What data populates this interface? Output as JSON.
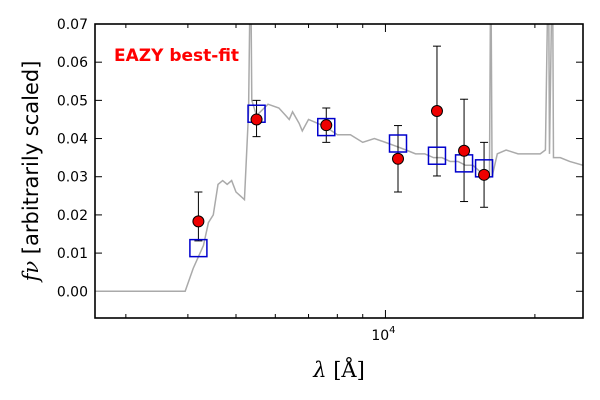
{
  "chart_data": {
    "type": "scatter",
    "annotation": "EAZY best-fit",
    "annotation_color": "#ff0000",
    "xlabel_symbol": "λ",
    "xlabel_unit": "[Å]",
    "ylabel_symbol": "fν",
    "ylabel_text": "[arbitrarily scaled]",
    "x_scale": "log",
    "x_range": [
      2600,
      25000
    ],
    "ylim": [
      -0.007,
      0.07
    ],
    "y_ticks": [
      0.0,
      0.01,
      0.02,
      0.03,
      0.04,
      0.05,
      0.06,
      0.07
    ],
    "y_tick_labels": [
      "0.00",
      "0.01",
      "0.02",
      "0.03",
      "0.04",
      "0.05",
      "0.06",
      "0.07"
    ],
    "x_major_tick": {
      "value": 10000,
      "label_base": "10",
      "label_exp": "4"
    },
    "x_minor_ticks": [
      3000,
      4000,
      5000,
      6000,
      7000,
      8000,
      9000,
      20000
    ],
    "colors": {
      "model_line": "#aaaaaa",
      "observed_fill": "#ee0000",
      "observed_edge": "#000000",
      "model_phot_edge": "#0000cc",
      "errorbar": "#000000"
    },
    "observed_photometry": [
      {
        "x": 4200,
        "y": 0.0183,
        "yerr_low": 0.0051,
        "yerr_high": 0.0077
      },
      {
        "x": 5500,
        "y": 0.045,
        "yerr_low": 0.0045,
        "yerr_high": 0.005
      },
      {
        "x": 7600,
        "y": 0.0435,
        "yerr_low": 0.0045,
        "yerr_high": 0.0045
      },
      {
        "x": 10600,
        "y": 0.0347,
        "yerr_low": 0.0087,
        "yerr_high": 0.0087
      },
      {
        "x": 12700,
        "y": 0.0472,
        "yerr_low": 0.017,
        "yerr_high": 0.017
      },
      {
        "x": 14400,
        "y": 0.0368,
        "yerr_low": 0.0133,
        "yerr_high": 0.0135
      },
      {
        "x": 15800,
        "y": 0.0305,
        "yerr_low": 0.0085,
        "yerr_high": 0.0085
      }
    ],
    "model_photometry": [
      {
        "x": 4200,
        "y": 0.0113
      },
      {
        "x": 5500,
        "y": 0.0465
      },
      {
        "x": 7600,
        "y": 0.043
      },
      {
        "x": 10600,
        "y": 0.0387
      },
      {
        "x": 12700,
        "y": 0.0355
      },
      {
        "x": 14400,
        "y": 0.0335
      },
      {
        "x": 15800,
        "y": 0.0322
      }
    ],
    "model_spectrum": [
      [
        2600,
        0.0
      ],
      [
        3800,
        0.0
      ],
      [
        3950,
        0.0
      ],
      [
        4100,
        0.006
      ],
      [
        4300,
        0.012
      ],
      [
        4400,
        0.018
      ],
      [
        4500,
        0.02
      ],
      [
        4600,
        0.028
      ],
      [
        4700,
        0.029
      ],
      [
        4800,
        0.028
      ],
      [
        4900,
        0.029
      ],
      [
        5000,
        0.026
      ],
      [
        5100,
        0.025
      ],
      [
        5200,
        0.024
      ],
      [
        5300,
        0.047
      ],
      [
        5350,
        0.09
      ],
      [
        5380,
        0.05
      ],
      [
        5500,
        0.046
      ],
      [
        5800,
        0.049
      ],
      [
        6100,
        0.048
      ],
      [
        6300,
        0.046
      ],
      [
        6400,
        0.045
      ],
      [
        6500,
        0.047
      ],
      [
        6700,
        0.044
      ],
      [
        6800,
        0.042
      ],
      [
        7000,
        0.045
      ],
      [
        7300,
        0.044
      ],
      [
        7600,
        0.043
      ],
      [
        8000,
        0.041
      ],
      [
        8500,
        0.041
      ],
      [
        9000,
        0.039
      ],
      [
        9500,
        0.04
      ],
      [
        10000,
        0.039
      ],
      [
        10500,
        0.038
      ],
      [
        11000,
        0.037
      ],
      [
        11500,
        0.036
      ],
      [
        12000,
        0.036
      ],
      [
        12500,
        0.035
      ],
      [
        13000,
        0.035
      ],
      [
        13500,
        0.034
      ],
      [
        14000,
        0.034
      ],
      [
        14500,
        0.033
      ],
      [
        15000,
        0.033
      ],
      [
        15300,
        0.032
      ],
      [
        15600,
        0.031
      ],
      [
        16000,
        0.031
      ],
      [
        16200,
        0.03
      ],
      [
        16300,
        0.09
      ],
      [
        16400,
        0.03
      ],
      [
        16800,
        0.036
      ],
      [
        17500,
        0.037
      ],
      [
        18500,
        0.036
      ],
      [
        19500,
        0.036
      ],
      [
        20500,
        0.036
      ],
      [
        21000,
        0.037
      ],
      [
        21300,
        0.09
      ],
      [
        21400,
        0.036
      ],
      [
        21700,
        0.09
      ],
      [
        21800,
        0.035
      ],
      [
        22500,
        0.035
      ],
      [
        23500,
        0.034
      ],
      [
        25000,
        0.033
      ]
    ]
  }
}
